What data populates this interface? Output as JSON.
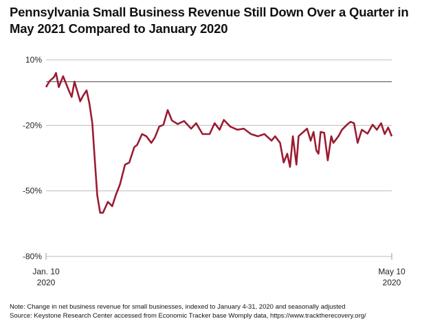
{
  "chart_data": {
    "type": "line",
    "title": "Pennsylvania Small Business Revenue Still Down Over a Quarter in May 2021 Compared to January 2020",
    "xlabel": "",
    "ylabel": "",
    "ylim": [
      -80,
      10
    ],
    "yticks": [
      10,
      -20,
      -50,
      -80
    ],
    "ytick_labels": [
      "10%",
      "-20%",
      "-50%",
      "-80%"
    ],
    "xlim": [
      "2020-01-10",
      "2021-05-10"
    ],
    "xtick_labels": [
      {
        "line1": "Jan. 10",
        "line2": "2020"
      },
      {
        "line1": "May 10",
        "line2": "2020"
      }
    ],
    "grid": true,
    "zero_line": true,
    "line_color": "#9b1b30",
    "series": [
      {
        "x": [
          "2020-01-10",
          "2020-01-15",
          "2020-01-21",
          "2020-01-24",
          "2020-01-28",
          "2020-02-03",
          "2020-02-11",
          "2020-02-15",
          "2020-02-19",
          "2020-02-27",
          "2020-03-02",
          "2020-03-07",
          "2020-03-11",
          "2020-03-15",
          "2020-03-19",
          "2020-03-22",
          "2020-03-26",
          "2020-03-30",
          "2020-04-06",
          "2020-04-12",
          "2020-04-17",
          "2020-04-23",
          "2020-04-30",
          "2020-05-06",
          "2020-05-13",
          "2020-05-17",
          "2020-05-24",
          "2020-05-30",
          "2020-06-06",
          "2020-06-11",
          "2020-06-17",
          "2020-06-23",
          "2020-06-29",
          "2020-07-05",
          "2020-07-13",
          "2020-07-22",
          "2020-08-01",
          "2020-08-08",
          "2020-08-17",
          "2020-08-27",
          "2020-09-03",
          "2020-09-10",
          "2020-09-16",
          "2020-09-25",
          "2020-10-05",
          "2020-10-14",
          "2020-10-24",
          "2020-11-03",
          "2020-11-12",
          "2020-11-22",
          "2020-11-27",
          "2020-12-04",
          "2020-12-09",
          "2020-12-14",
          "2020-12-18",
          "2020-12-22",
          "2020-12-27",
          "2020-12-30",
          "2021-01-04",
          "2021-01-11",
          "2021-01-16",
          "2021-01-20",
          "2021-01-24",
          "2021-01-27",
          "2021-01-30",
          "2021-02-04",
          "2021-02-09",
          "2021-02-14",
          "2021-02-17",
          "2021-02-24",
          "2021-03-01",
          "2021-03-08",
          "2021-03-13",
          "2021-03-18",
          "2021-03-23",
          "2021-03-29",
          "2021-04-06",
          "2021-04-13",
          "2021-04-19",
          "2021-04-25",
          "2021-04-30",
          "2021-05-05",
          "2021-05-10"
        ],
        "values": [
          -2.5,
          0.3,
          2,
          4,
          -2.5,
          2.5,
          -4,
          -7,
          0,
          -9,
          -6.5,
          -4,
          -10,
          -19,
          -38,
          -52,
          -60,
          -60,
          -55,
          -57,
          -52,
          -47,
          -38,
          -37,
          -30,
          -29,
          -24,
          -25,
          -28,
          -25.5,
          -20.6,
          -19.7,
          -13,
          -17.8,
          -19.4,
          -18,
          -21.5,
          -19,
          -24,
          -24,
          -19,
          -22,
          -17.5,
          -20.6,
          -22,
          -21.5,
          -24,
          -25,
          -24,
          -27,
          -25,
          -28,
          -37,
          -33,
          -39,
          -25,
          -38,
          -25,
          -23.5,
          -21.5,
          -27,
          -23,
          -31.5,
          -33,
          -23,
          -23.4,
          -36,
          -25,
          -28,
          -25,
          -22,
          -19.7,
          -18.4,
          -19,
          -28,
          -22,
          -23.8,
          -19.7,
          -22,
          -19,
          -24,
          -21,
          -25
        ]
      }
    ]
  },
  "notes": {
    "note": "Note: Change in net business revenue for small businesses, indexed to January 4-31, 2020 and seasonally adjusted",
    "source": "Source: Keystone Research Center accessed from Economic Tracker base Womply data, https://www.tracktherecovery.org/"
  }
}
